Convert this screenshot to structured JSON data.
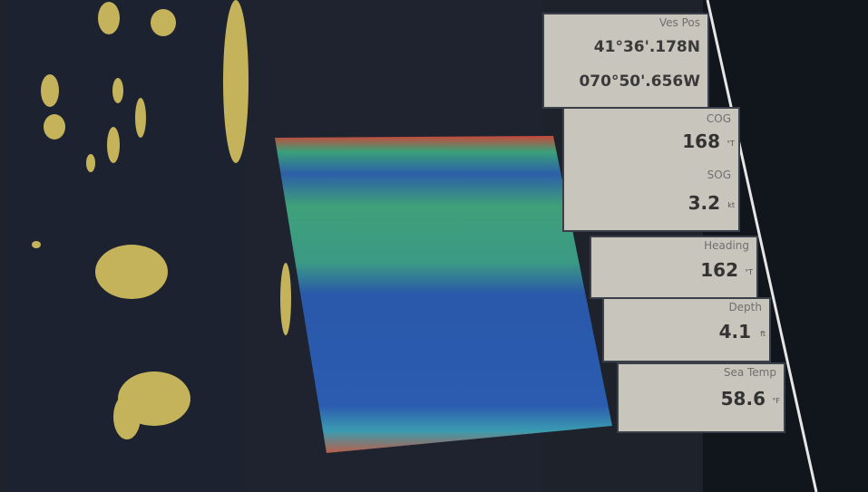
{
  "panels": [
    {
      "label": "Ves Pos",
      "lines": [
        "41°36'.178N",
        "070°50'.656W"
      ]
    },
    {
      "fields": [
        {
          "label": "COG",
          "value": "168",
          "unit": "°T"
        },
        {
          "label": "SOG",
          "value": "3.2",
          "unit": "kt"
        }
      ]
    },
    {
      "fields": [
        {
          "label": "Heading",
          "value": "162",
          "unit": "°T"
        }
      ]
    },
    {
      "fields": [
        {
          "label": "Depth",
          "value": "4.1",
          "unit": "ft"
        }
      ]
    },
    {
      "fields": [
        {
          "label": "Sea Temp",
          "value": "58.6",
          "unit": "°F"
        }
      ]
    }
  ]
}
